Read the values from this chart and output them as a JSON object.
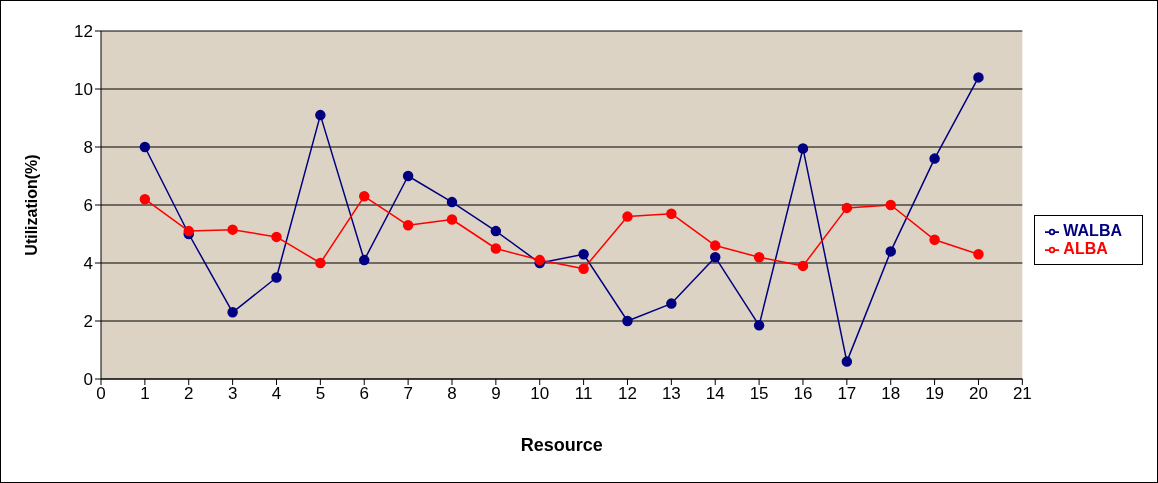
{
  "chart_data": {
    "type": "line",
    "xlabel": "Resource",
    "ylabel": "Utilization(%)",
    "x": [
      1,
      2,
      3,
      4,
      5,
      6,
      7,
      8,
      9,
      10,
      11,
      12,
      13,
      14,
      15,
      16,
      17,
      18,
      19,
      20
    ],
    "series": [
      {
        "name": "WALBA",
        "color": "#000080",
        "values": [
          8.0,
          5.0,
          2.3,
          3.5,
          9.1,
          4.1,
          7.0,
          6.1,
          5.1,
          4.0,
          4.3,
          2.0,
          2.6,
          4.2,
          1.85,
          7.95,
          0.6,
          4.4,
          7.6,
          10.4
        ]
      },
      {
        "name": "ALBA",
        "color": "#ff0000",
        "values": [
          6.2,
          5.1,
          5.15,
          4.9,
          4.0,
          6.3,
          5.3,
          5.5,
          4.5,
          4.1,
          3.8,
          5.6,
          5.7,
          4.6,
          4.2,
          3.9,
          5.9,
          6.0,
          4.8,
          4.3
        ]
      }
    ],
    "xlim": [
      0,
      21
    ],
    "xticks": [
      0,
      1,
      2,
      3,
      4,
      5,
      6,
      7,
      8,
      9,
      10,
      11,
      12,
      13,
      14,
      15,
      16,
      17,
      18,
      19,
      20,
      21
    ],
    "ylim": [
      0,
      12
    ],
    "yticks": [
      0,
      2,
      4,
      6,
      8,
      10,
      12
    ],
    "grid": "y",
    "legend": "right",
    "marker": "circle",
    "line_style": "solid"
  }
}
